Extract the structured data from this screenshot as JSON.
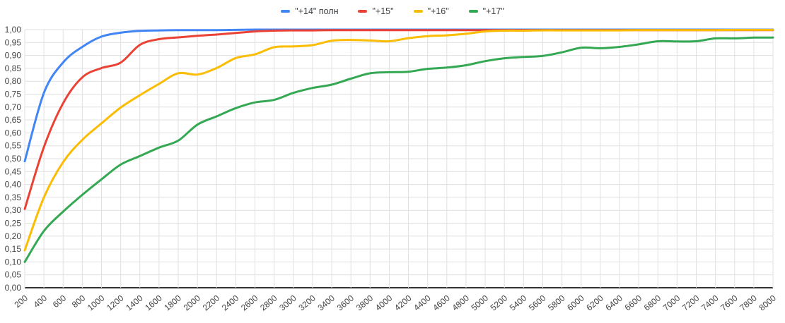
{
  "legend": {
    "items": [
      {
        "label": "\"+14\" полн",
        "color": "#4285f4"
      },
      {
        "label": "\"+15\"",
        "color": "#ea4335"
      },
      {
        "label": "\"+16\"",
        "color": "#fbbc04"
      },
      {
        "label": "\"+17\"",
        "color": "#34a853"
      }
    ]
  },
  "chart_data": {
    "type": "line",
    "title": "",
    "xlabel": "",
    "ylabel": "",
    "ylim": [
      0,
      1
    ],
    "y_tick_step": 0.05,
    "grid": true,
    "legend_position": "top",
    "decimal_separator": ",",
    "x": [
      200,
      400,
      600,
      800,
      1000,
      1200,
      1400,
      1600,
      1800,
      2000,
      2200,
      2400,
      2600,
      2800,
      3000,
      3200,
      3400,
      3600,
      3800,
      4000,
      4200,
      4400,
      4600,
      4800,
      5000,
      5200,
      5400,
      5600,
      5800,
      6000,
      6200,
      6400,
      6600,
      6800,
      7000,
      7200,
      7400,
      7600,
      7800,
      8000
    ],
    "x_tick_labels": [
      "200",
      "400",
      "600",
      "800",
      "1000",
      "1200",
      "1400",
      "1600",
      "1800",
      "2000",
      "2200",
      "2400",
      "2600",
      "2800",
      "3000",
      "3200",
      "3400",
      "3600",
      "3800",
      "4000",
      "4200",
      "4400",
      "4600",
      "4800",
      "5000",
      "5200",
      "5400",
      "5600",
      "5800",
      "6000",
      "6200",
      "6400",
      "6600",
      "6800",
      "7000",
      "7200",
      "7400",
      "7600",
      "7800",
      "8000"
    ],
    "y_tick_labels": [
      "0,00",
      "0,05",
      "0,10",
      "0,15",
      "0,20",
      "0,25",
      "0,30",
      "0,35",
      "0,40",
      "0,45",
      "0,50",
      "0,55",
      "0,60",
      "0,65",
      "0,70",
      "0,75",
      "0,80",
      "0,85",
      "0,90",
      "0,95",
      "1,00"
    ],
    "series": [
      {
        "name": "\"+14\" полн",
        "color": "#4285f4",
        "values": [
          0.49,
          0.755,
          0.873,
          0.933,
          0.973,
          0.988,
          0.995,
          0.997,
          0.998,
          0.998,
          0.998,
          0.999,
          1,
          1,
          1,
          1,
          1,
          1,
          1,
          1,
          1,
          1,
          1,
          1,
          1,
          1,
          1,
          1,
          1,
          1,
          1,
          1,
          1,
          1,
          1,
          1,
          1,
          1,
          1,
          1
        ]
      },
      {
        "name": "\"+15\"",
        "color": "#ea4335",
        "values": [
          0.305,
          0.545,
          0.715,
          0.815,
          0.851,
          0.872,
          0.941,
          0.963,
          0.97,
          0.976,
          0.981,
          0.987,
          0.993,
          0.996,
          0.997,
          0.997,
          0.998,
          0.998,
          0.998,
          0.998,
          0.998,
          0.998,
          0.998,
          0.998,
          0.998,
          0.998,
          0.998,
          0.998,
          0.998,
          0.998,
          0.998,
          0.998,
          0.998,
          0.998,
          0.998,
          0.998,
          0.998,
          0.998,
          0.998,
          0.998
        ]
      },
      {
        "name": "\"+16\"",
        "color": "#fbbc04",
        "values": [
          0.145,
          0.35,
          0.487,
          0.573,
          0.637,
          0.698,
          0.746,
          0.79,
          0.831,
          0.826,
          0.851,
          0.89,
          0.904,
          0.932,
          0.935,
          0.94,
          0.957,
          0.96,
          0.958,
          0.955,
          0.967,
          0.975,
          0.978,
          0.984,
          0.993,
          0.996,
          0.996,
          0.997,
          0.997,
          0.997,
          0.997,
          0.997,
          0.998,
          0.998,
          0.998,
          0.998,
          0.998,
          0.999,
          0.999,
          0.999
        ]
      },
      {
        "name": "\"+17\"",
        "color": "#34a853",
        "values": [
          0.1,
          0.22,
          0.295,
          0.36,
          0.42,
          0.477,
          0.51,
          0.543,
          0.57,
          0.632,
          0.664,
          0.696,
          0.718,
          0.728,
          0.755,
          0.774,
          0.787,
          0.81,
          0.831,
          0.835,
          0.837,
          0.848,
          0.853,
          0.862,
          0.878,
          0.889,
          0.894,
          0.898,
          0.912,
          0.93,
          0.928,
          0.933,
          0.943,
          0.955,
          0.954,
          0.955,
          0.966,
          0.966,
          0.969,
          0.969
        ]
      }
    ]
  }
}
